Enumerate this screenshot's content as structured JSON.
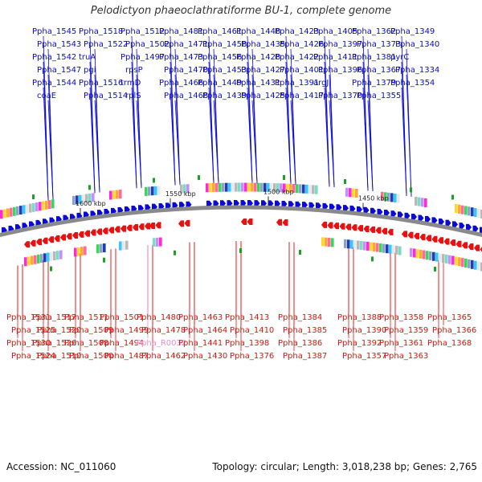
{
  "title": "Pelodictyon phaeoclathratiforme BU-1, complete genome",
  "footer": {
    "accession": "Accession: NC_011060",
    "stats": "Topology: circular; Length: 3,018,238 bp; Genes: 2,765"
  },
  "colors": {
    "forward": "#0a0ad8",
    "reverse": "#e81010",
    "rna": "#f08ac8",
    "backbone": "#8a8a8a"
  },
  "ticks": [
    "1600 kbp",
    "1550 kbp",
    "1500 kbp",
    "1450 kbp"
  ],
  "top_labels": [
    "Ppha_1545",
    "Ppha_1543",
    "Ppha_1542",
    "Ppha_1547",
    "Ppha_1544",
    "coaE",
    "Ppha_1518",
    "Ppha_1522",
    "truA",
    "pgi",
    "Ppha_1516",
    "Ppha_1514",
    "Ppha_1512",
    "Ppha_1502",
    "Ppha_1497",
    "rpsP",
    "trmD",
    "rplS",
    "Ppha_1481",
    "Ppha_1471",
    "Ppha_1473",
    "Ppha_1470",
    "Ppha_1466",
    "Ppha_1468",
    "Ppha_1461",
    "Ppha_1458",
    "Ppha_1456",
    "Ppha_1453",
    "Ppha_1449",
    "Ppha_1439",
    "Ppha_1448",
    "Ppha_1435",
    "Ppha_1428",
    "Ppha_1427",
    "Ppha_1431",
    "Ppha_1425",
    "Ppha_1423",
    "Ppha_1426",
    "Ppha_1422",
    "Ppha_1401",
    "Ppha_1391",
    "Ppha_1417",
    "Ppha_1405",
    "Ppha_1397",
    "Ppha_1411",
    "Ppha_1396",
    "argJ",
    "Ppha_1370",
    "Ppha_1362",
    "Ppha_1373",
    "Ppha_1381",
    "Ppha_1367",
    "Ppha_1379",
    "Ppha_1355",
    "Ppha_1349",
    "Ppha_1340",
    "pyrC",
    "Ppha_1334",
    "Ppha_1354"
  ],
  "bottom_labels": [
    "Ppha_1531",
    "Ppha_1525",
    "Ppha_1530",
    "Ppha_1524",
    "Ppha_1517",
    "Ppha_1520",
    "Ppha_1526",
    "Ppha_1510",
    "Ppha_1511",
    "Ppha_1509",
    "Ppha_1508",
    "Ppha_1500",
    "Ppha_1501",
    "Ppha_1499",
    "Ppha_1494",
    "Ppha_1487",
    "Ppha_1480",
    "Ppha_1478",
    "Ppha_R0032",
    "Ppha_1462",
    "Ppha_1463",
    "Ppha_1464",
    "Ppha_1441",
    "Ppha_1430",
    "Ppha_1413",
    "Ppha_1410",
    "Ppha_1398",
    "Ppha_1376",
    "Ppha_1384",
    "Ppha_1385",
    "Ppha_1386",
    "Ppha_1387",
    "Ppha_1388",
    "Ppha_1390",
    "Ppha_1392",
    "Ppha_1357",
    "Ppha_1358",
    "Ppha_1359",
    "Ppha_1361",
    "Ppha_1363",
    "Ppha_1365",
    "Ppha_1366",
    "Ppha_1368"
  ]
}
